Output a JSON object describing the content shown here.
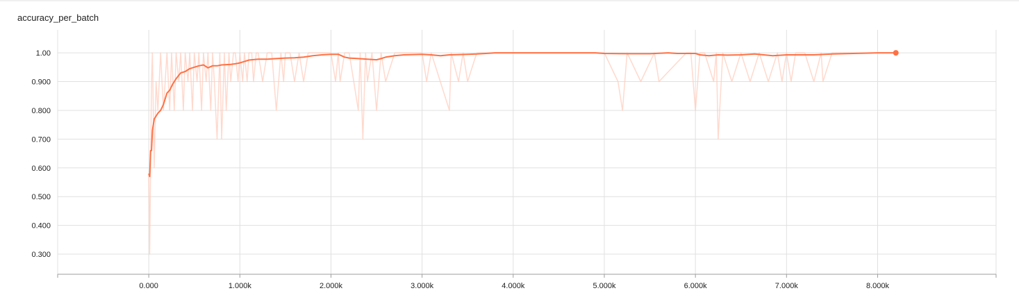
{
  "title": "accuracy_per_batch",
  "colors": {
    "line": "#ff7043",
    "raw": "#ffccbc",
    "grid": "#e0e0e0",
    "axis": "#9e9e9e"
  },
  "chart_data": {
    "type": "line",
    "title": "accuracy_per_batch",
    "xlabel": "",
    "ylabel": "",
    "xlim": [
      -1000,
      9300
    ],
    "ylim": [
      0.23,
      1.08
    ],
    "grid": true,
    "x_ticks": [
      0,
      1000,
      2000,
      3000,
      4000,
      5000,
      6000,
      7000,
      8000
    ],
    "x_tick_labels": [
      "0.000",
      "1.000k",
      "2.000k",
      "3.000k",
      "4.000k",
      "5.000k",
      "6.000k",
      "7.000k",
      "8.000k"
    ],
    "y_ticks": [
      0.3,
      0.4,
      0.5,
      0.6,
      0.7,
      0.8,
      0.9,
      1.0
    ],
    "y_tick_labels": [
      "0.300",
      "0.400",
      "0.500",
      "0.600",
      "0.700",
      "0.800",
      "0.900",
      "1.00"
    ],
    "series": [
      {
        "name": "",
        "role": "smoothed",
        "x": [
          0,
          10,
          20,
          30,
          40,
          60,
          80,
          100,
          130,
          160,
          200,
          230,
          260,
          300,
          350,
          400,
          450,
          500,
          550,
          600,
          650,
          700,
          750,
          800,
          900,
          950,
          1000,
          1050,
          1100,
          1200,
          1300,
          1400,
          1500,
          1600,
          1700,
          1800,
          1900,
          2000,
          2080,
          2150,
          2200,
          2300,
          2400,
          2500,
          2550,
          2600,
          2700,
          2800,
          3000,
          3100,
          3200,
          3300,
          3500,
          3600,
          3700,
          3800,
          4000,
          4500,
          4900,
          5000,
          5300,
          5500,
          5700,
          5800,
          6000,
          6050,
          6150,
          6250,
          6350,
          6500,
          6650,
          6750,
          6850,
          7000,
          7300,
          7500,
          8000,
          8200
        ],
        "y": [
          0.58,
          0.57,
          0.66,
          0.66,
          0.73,
          0.77,
          0.78,
          0.79,
          0.8,
          0.82,
          0.86,
          0.87,
          0.89,
          0.91,
          0.93,
          0.935,
          0.945,
          0.95,
          0.955,
          0.958,
          0.948,
          0.955,
          0.955,
          0.958,
          0.96,
          0.962,
          0.965,
          0.97,
          0.975,
          0.978,
          0.978,
          0.98,
          0.982,
          0.983,
          0.985,
          0.99,
          0.993,
          0.995,
          0.995,
          0.985,
          0.982,
          0.98,
          0.978,
          0.976,
          0.98,
          0.985,
          0.99,
          0.993,
          0.995,
          0.993,
          0.99,
          0.993,
          0.995,
          0.996,
          0.998,
          1.0,
          1.0,
          1.0,
          1.0,
          0.998,
          0.997,
          0.997,
          1.0,
          0.998,
          0.998,
          0.993,
          0.99,
          0.993,
          0.992,
          0.993,
          0.996,
          0.993,
          0.99,
          0.993,
          0.993,
          0.996,
          1.0,
          1.0
        ]
      },
      {
        "name": "",
        "role": "raw",
        "x": [
          0,
          10,
          20,
          30,
          40,
          60,
          80,
          100,
          130,
          160,
          180,
          200,
          230,
          250,
          280,
          300,
          330,
          350,
          380,
          400,
          430,
          450,
          480,
          500,
          530,
          550,
          580,
          600,
          630,
          650,
          680,
          700,
          720,
          750,
          780,
          800,
          830,
          850,
          880,
          900,
          930,
          950,
          980,
          1000,
          1030,
          1050,
          1080,
          1100,
          1130,
          1150,
          1180,
          1200,
          1250,
          1300,
          1350,
          1400,
          1450,
          1480,
          1500,
          1550,
          1600,
          1650,
          1700,
          1750,
          1800,
          1900,
          2000,
          2050,
          2080,
          2100,
          2150,
          2200,
          2250,
          2300,
          2320,
          2350,
          2380,
          2400,
          2450,
          2500,
          2550,
          2600,
          2700,
          2800,
          3000,
          3050,
          3100,
          3200,
          3300,
          3320,
          3400,
          3450,
          3500,
          3600,
          3800,
          4500,
          5000,
          5150,
          5200,
          5250,
          5400,
          5550,
          5600,
          5900,
          5950,
          6000,
          6050,
          6100,
          6200,
          6230,
          6250,
          6300,
          6400,
          6500,
          6600,
          6700,
          6800,
          6900,
          6950,
          7000,
          7050,
          7100,
          7200,
          7300,
          7380,
          7400,
          7500,
          8000,
          8200
        ],
        "y": [
          0.58,
          0.3,
          0.6,
          0.9,
          1.0,
          0.6,
          0.9,
          0.8,
          1.0,
          0.8,
          0.9,
          1.0,
          0.8,
          1.0,
          0.8,
          1.0,
          0.9,
          1.0,
          0.8,
          1.0,
          0.9,
          1.0,
          0.8,
          1.0,
          0.9,
          1.0,
          0.8,
          1.0,
          0.9,
          1.0,
          0.8,
          1.0,
          0.9,
          0.7,
          1.0,
          0.7,
          1.0,
          0.8,
          1.0,
          0.9,
          1.0,
          1.0,
          0.9,
          1.0,
          0.9,
          1.0,
          0.9,
          1.0,
          1.0,
          0.9,
          1.0,
          1.0,
          0.9,
          1.0,
          1.0,
          0.8,
          1.0,
          0.9,
          1.0,
          1.0,
          0.9,
          1.0,
          0.9,
          1.0,
          1.0,
          1.0,
          1.0,
          0.9,
          1.0,
          0.9,
          1.0,
          1.0,
          0.9,
          0.8,
          1.0,
          0.7,
          1.0,
          0.9,
          1.0,
          0.8,
          1.0,
          0.9,
          1.0,
          1.0,
          1.0,
          0.9,
          1.0,
          0.9,
          0.8,
          1.0,
          0.9,
          1.0,
          0.9,
          1.0,
          1.0,
          1.0,
          1.0,
          0.9,
          0.8,
          1.0,
          0.9,
          1.0,
          0.9,
          1.0,
          1.0,
          0.8,
          1.0,
          1.0,
          0.9,
          1.0,
          0.7,
          1.0,
          0.9,
          1.0,
          0.9,
          1.0,
          0.9,
          1.0,
          0.9,
          1.0,
          0.9,
          1.0,
          1.0,
          0.9,
          1.0,
          0.9,
          1.0,
          1.0,
          1.0
        ]
      }
    ]
  }
}
